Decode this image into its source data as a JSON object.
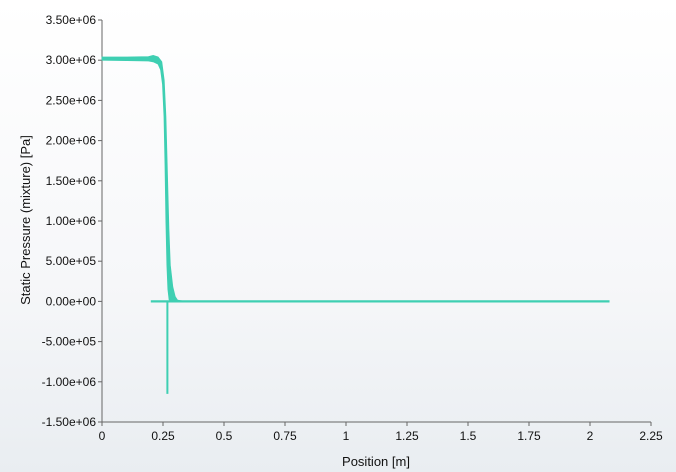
{
  "chart_data": {
    "type": "line",
    "title": "",
    "xlabel": "Position [m]",
    "ylabel": "Static Pressure (mixture) [Pa]",
    "xlim": [
      0,
      2.25
    ],
    "ylim": [
      -1500000,
      3500000
    ],
    "grid": false,
    "legend": "none",
    "x_ticks": [
      0,
      0.25,
      0.5,
      0.75,
      1,
      1.25,
      1.5,
      1.75,
      2,
      2.25
    ],
    "x_tick_labels": [
      "0",
      "0.25",
      "0.5",
      "0.75",
      "1",
      "1.25",
      "1.5",
      "1.75",
      "2",
      "2.25"
    ],
    "y_ticks": [
      3500000,
      3000000,
      2500000,
      2000000,
      1500000,
      1000000,
      500000,
      0,
      -500000,
      -1000000,
      -1500000
    ],
    "y_tick_labels": [
      "3.50e+06",
      "3.00e+06",
      "2.50e+06",
      "2.00e+06",
      "1.50e+06",
      "1.00e+06",
      "5.00e+05",
      "0.00e+00",
      "-5.00e+05",
      "-1.00e+06",
      "-1.50e+06"
    ],
    "series_color": "#3ecfb2",
    "band": {
      "upper": [
        [
          0,
          3040000
        ],
        [
          0.1,
          3040000
        ],
        [
          0.19,
          3045000
        ],
        [
          0.21,
          3060000
        ],
        [
          0.23,
          3040000
        ],
        [
          0.245,
          2980000
        ],
        [
          0.255,
          2750000
        ],
        [
          0.262,
          2300000
        ],
        [
          0.268,
          1600000
        ],
        [
          0.274,
          900000
        ],
        [
          0.28,
          450000
        ],
        [
          0.29,
          180000
        ],
        [
          0.3,
          60000
        ],
        [
          0.31,
          15000
        ],
        [
          0.33,
          5000
        ]
      ],
      "lower": [
        [
          0.33,
          -5000
        ],
        [
          0.3,
          -5000
        ],
        [
          0.285,
          0
        ],
        [
          0.275,
          20000
        ],
        [
          0.27,
          150000
        ],
        [
          0.266,
          450000
        ],
        [
          0.262,
          1000000
        ],
        [
          0.258,
          1700000
        ],
        [
          0.254,
          2300000
        ],
        [
          0.248,
          2700000
        ],
        [
          0.24,
          2880000
        ],
        [
          0.23,
          2950000
        ],
        [
          0.21,
          2980000
        ],
        [
          0.19,
          2990000
        ],
        [
          0.1,
          2995000
        ],
        [
          0,
          3000000
        ]
      ]
    },
    "baseline_x": [
      0.2,
      2.08
    ],
    "baseline_y": 0,
    "spike": {
      "x": 0.268,
      "y_min": -1150000,
      "y_max": 0
    }
  }
}
